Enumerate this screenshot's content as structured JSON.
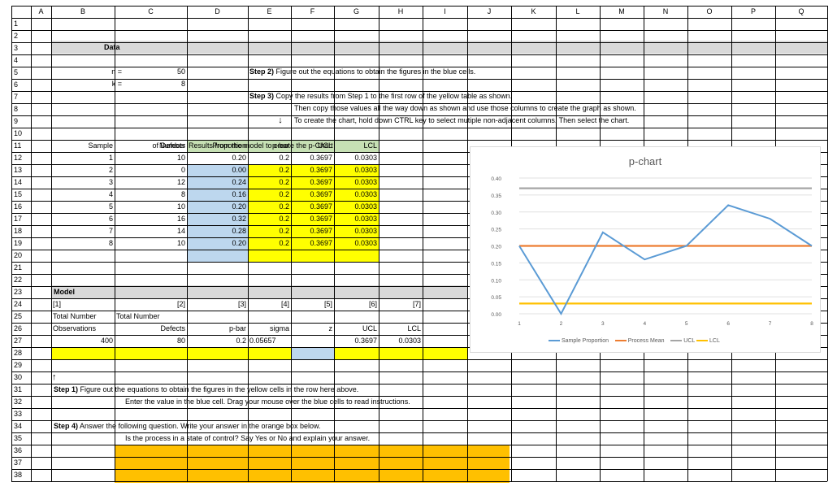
{
  "columns": [
    "A",
    "B",
    "C",
    "D",
    "E",
    "F",
    "G",
    "H",
    "I",
    "J",
    "K",
    "L",
    "M",
    "N",
    "O",
    "P",
    "Q"
  ],
  "rows": [
    "1",
    "2",
    "3",
    "4",
    "5",
    "6",
    "7",
    "8",
    "9",
    "10",
    "11",
    "12",
    "13",
    "14",
    "15",
    "16",
    "17",
    "18",
    "19",
    "20",
    "21",
    "22",
    "23",
    "24",
    "25",
    "26",
    "27",
    "28",
    "29",
    "30",
    "31",
    "32",
    "33",
    "34",
    "35",
    "36",
    "37",
    "38"
  ],
  "data_header": "Data",
  "n_label": "n =",
  "n_value": "50",
  "k_label": "k =",
  "k_value": "8",
  "step2": "Step 2)",
  "step2_text": "Figure out the equations to obtain the figures in the blue cells.",
  "step3": "Step 3)",
  "step3_text": "Copy the results from Step 1 to the first row of the yellow table as shown.",
  "step3_line2": "Then copy those values all the way down as shown and use those columns to create the graph as shown.",
  "step3_line3": "To create the chart, hold down CTRL key to select mutiple non-adjacent columns. Then select the chart.",
  "down_arrow": "↓",
  "number_label": "Number",
  "results_label": "Results from the model to create the p-Chart",
  "table_headers": [
    "Sample",
    "of Defects",
    "Proportion",
    "p-bar",
    "UCL",
    "LCL"
  ],
  "table_rows": [
    [
      "1",
      "10",
      "0.20",
      "0.2",
      "0.3697",
      "0.0303"
    ],
    [
      "2",
      "0",
      "0.00",
      "0.2",
      "0.3697",
      "0.0303"
    ],
    [
      "3",
      "12",
      "0.24",
      "0.2",
      "0.3697",
      "0.0303"
    ],
    [
      "4",
      "8",
      "0.16",
      "0.2",
      "0.3697",
      "0.0303"
    ],
    [
      "5",
      "10",
      "0.20",
      "0.2",
      "0.3697",
      "0.0303"
    ],
    [
      "6",
      "16",
      "0.32",
      "0.2",
      "0.3697",
      "0.0303"
    ],
    [
      "7",
      "14",
      "0.28",
      "0.2",
      "0.3697",
      "0.0303"
    ],
    [
      "8",
      "10",
      "0.20",
      "0.2",
      "0.3697",
      "0.0303"
    ]
  ],
  "model_header": "Model",
  "model_nums": [
    "[1]",
    "[2]",
    "[3]",
    "[4]",
    "[5]",
    "[6]",
    "[7]"
  ],
  "total_number_1": "Total Number",
  "total_number_2": "Total Number",
  "observations": "Observations",
  "defects": "Defects",
  "model_labels": [
    "p-bar",
    "sigma",
    "z",
    "UCL",
    "LCL"
  ],
  "model_values": {
    "obs": "400",
    "defects": "80",
    "pbar": "0.2",
    "sigma": "0.05657",
    "ucl": "0.3697",
    "lcl": "0.0303"
  },
  "up_arrow": "↑",
  "step1": "Step 1)",
  "step1_text": "Figure out the equations to obtain the figures in the yellow cells in the row here above.",
  "step1_line2": "Enter the value in the blue cell. Drag your mouse over the blue cells to read instructions.",
  "step4": "Step 4)",
  "step4_text": "Answer the following question. Write your answer in the orange box below.",
  "step4_line2": "Is the process in a state of control? Say Yes or No and explain your answer.",
  "colors": {
    "yellow": "#ffff00",
    "blue": "#bdd7ee",
    "green": "#c6e0b4",
    "orange": "#ffc000",
    "gray_band": "#d9d9d9"
  },
  "chart_data": {
    "type": "line",
    "title": "p-chart",
    "x": [
      1,
      2,
      3,
      4,
      5,
      6,
      7,
      8
    ],
    "ylim": [
      0,
      0.4
    ],
    "yticks": [
      "0.00",
      "0.05",
      "0.10",
      "0.15",
      "0.20",
      "0.25",
      "0.30",
      "0.35",
      "0.40"
    ],
    "series": [
      {
        "name": "Sample Proportion",
        "color": "#5b9bd5",
        "values": [
          0.2,
          0.0,
          0.24,
          0.16,
          0.2,
          0.32,
          0.28,
          0.2
        ]
      },
      {
        "name": "Process Mean",
        "color": "#ed7d31",
        "values": [
          0.2,
          0.2,
          0.2,
          0.2,
          0.2,
          0.2,
          0.2,
          0.2
        ]
      },
      {
        "name": "UCL",
        "color": "#a5a5a5",
        "values": [
          0.3697,
          0.3697,
          0.3697,
          0.3697,
          0.3697,
          0.3697,
          0.3697,
          0.3697
        ]
      },
      {
        "name": "LCL",
        "color": "#ffc000",
        "values": [
          0.0303,
          0.0303,
          0.0303,
          0.0303,
          0.0303,
          0.0303,
          0.0303,
          0.0303
        ]
      }
    ],
    "legend": "bottom"
  }
}
